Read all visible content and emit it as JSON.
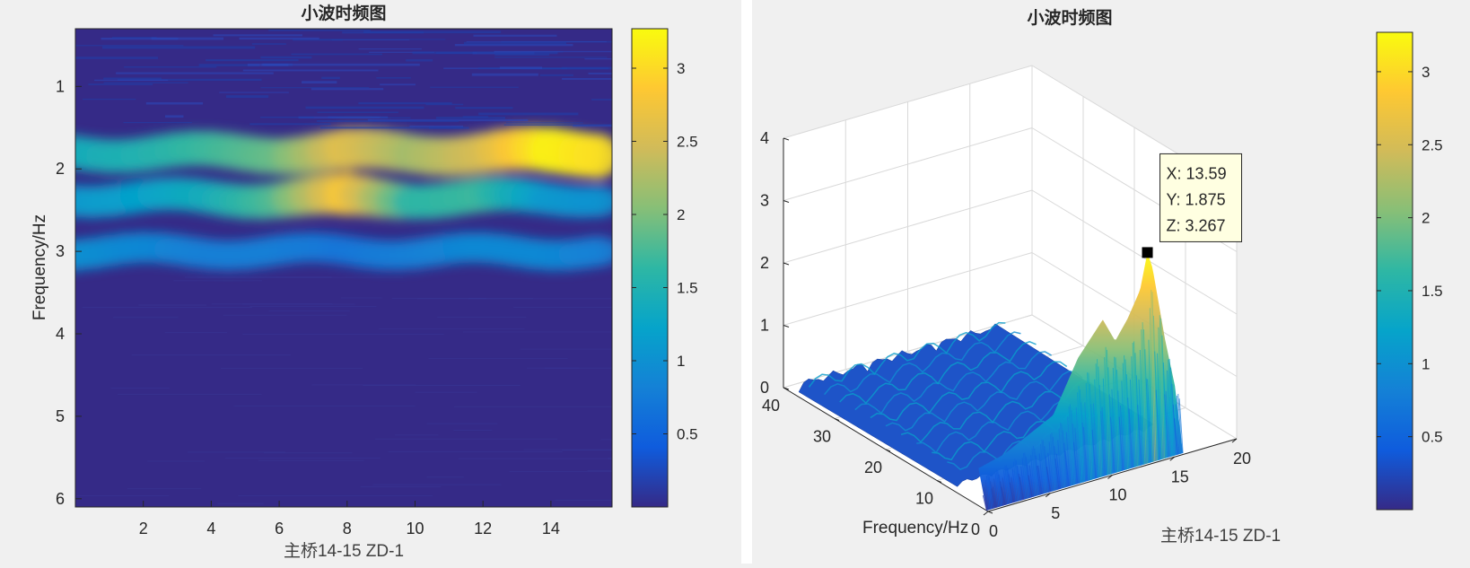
{
  "colors": {
    "background": "#f0f0f0",
    "axis": "#262626",
    "grid": "#d9d9d9",
    "colormap": "parula",
    "colormap_stops": [
      "#352a87",
      "#0f5cdd",
      "#1481d6",
      "#06a4ca",
      "#2eb7a4",
      "#87bf77",
      "#d1bb59",
      "#fec832",
      "#f9fb0e"
    ],
    "datatip_marker": "#000000",
    "datatip_box_fill": "#ffffe1"
  },
  "chart_data": [
    {
      "type": "heatmap",
      "title": "小波时频图",
      "xlabel": "主桥14-15 ZD-1",
      "ylabel": "Frequency/Hz",
      "xlim": [
        0,
        15.8
      ],
      "ylim": [
        0.3,
        6.1
      ],
      "y_reversed": true,
      "xticks": [
        2,
        4,
        6,
        8,
        10,
        12,
        14
      ],
      "yticks": [
        1,
        2,
        3,
        4,
        5,
        6
      ],
      "clim": [
        0,
        3.27
      ],
      "colorbar_ticks": [
        0.5,
        1,
        1.5,
        2,
        2.5,
        3
      ],
      "colorbar_tick_labels": [
        "0.5",
        "1",
        "1.5",
        "2",
        "2.5",
        "3"
      ],
      "ridges": [
        {
          "x": [
            0,
            2,
            4,
            6,
            8,
            10,
            12,
            14,
            15.8
          ],
          "y": 1.8,
          "z": [
            1.4,
            1.5,
            1.7,
            1.9,
            2.6,
            2.2,
            2.5,
            3.2,
            3.0
          ]
        },
        {
          "x": [
            0,
            2,
            4,
            6,
            8,
            10,
            12,
            14,
            15.8
          ],
          "y": 2.35,
          "z": [
            1.1,
            1.2,
            1.4,
            1.8,
            2.8,
            1.6,
            1.7,
            1.1,
            1.0
          ]
        },
        {
          "x": [
            0,
            2,
            4,
            6,
            8,
            10,
            12,
            14,
            15.8
          ],
          "y": 3.0,
          "z": [
            1.0,
            0.9,
            0.8,
            0.8,
            0.7,
            0.8,
            0.9,
            0.9,
            0.8
          ]
        }
      ],
      "grid": false
    },
    {
      "type": "surface3d",
      "title": "小波时频图",
      "xlabel": "主桥14-15 ZD-1",
      "ylabel": "Frequency/Hz",
      "xlim": [
        0,
        20
      ],
      "ylim": [
        0,
        40
      ],
      "zlim": [
        0,
        4
      ],
      "xticks": [
        0,
        5,
        10,
        15,
        20
      ],
      "yticks": [
        0,
        10,
        20,
        30,
        40
      ],
      "zticks": [
        0,
        1,
        2,
        3,
        4
      ],
      "clim": [
        0,
        3.27
      ],
      "colorbar_ticks": [
        0.5,
        1,
        1.5,
        2,
        2.5,
        3
      ],
      "colorbar_tick_labels": [
        "0.5",
        "1",
        "1.5",
        "2",
        "2.5",
        "3"
      ],
      "profile_x": [
        0,
        2,
        4,
        6,
        8,
        10,
        11,
        12,
        13,
        13.59,
        14,
        15,
        15.8
      ],
      "profile_peak_z": [
        0.6,
        0.7,
        0.9,
        1.1,
        1.9,
        2.4,
        2.0,
        2.3,
        2.7,
        3.267,
        3.0,
        1.8,
        1.0
      ],
      "grid": true,
      "datatip": {
        "x": 13.59,
        "y": 1.875,
        "z": 3.267
      },
      "datatip_lines": [
        "X: 13.59",
        "Y: 1.875",
        "Z: 3.267"
      ]
    }
  ]
}
